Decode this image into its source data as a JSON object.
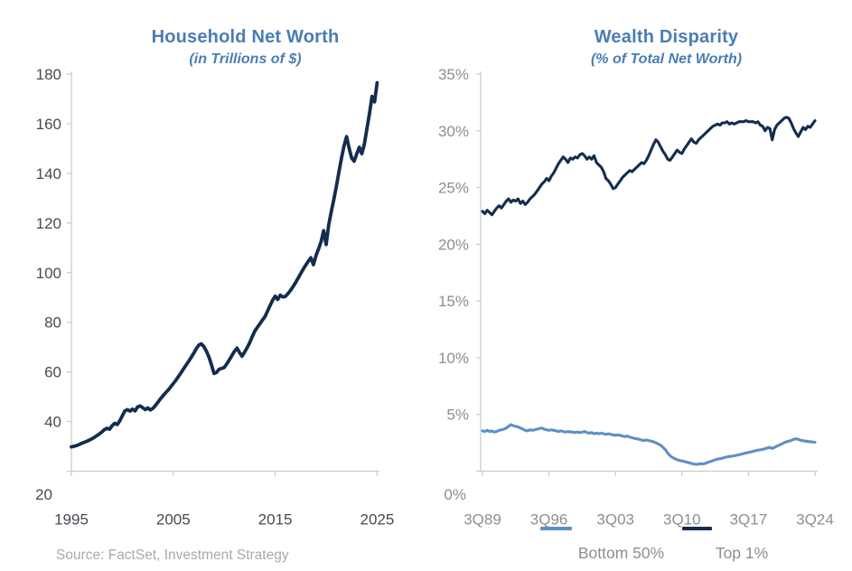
{
  "page": {
    "background": "#ffffff",
    "source_note": "Source: FactSet, Investment Strategy"
  },
  "colors": {
    "axis": "#c9c9c9",
    "left_tick_label": "#454b52",
    "right_tick_label": "#8e8e8e",
    "title_blue": "#4a7db5",
    "navy": "#142c4e",
    "light_blue": "#5d90c5",
    "legend_text": "#8e8e8e",
    "source_gray": "#a9a9a9"
  },
  "chart_data": [
    {
      "type": "line",
      "title": "Household Net Worth",
      "subtitle": "(in Trillions of $)",
      "xlabel": "",
      "ylabel": "",
      "grid": false,
      "legend_position": "none",
      "xlim": [
        1995,
        2025
      ],
      "ylim": [
        20,
        180
      ],
      "x_start": 1995,
      "x_step": 0.25,
      "xticks": [
        {
          "value": 1995,
          "label": "1995"
        },
        {
          "value": 2005,
          "label": "2005"
        },
        {
          "value": 2015,
          "label": "2015"
        },
        {
          "value": 2025,
          "label": "2025"
        }
      ],
      "yticks": [
        {
          "value": 180,
          "label": "180"
        },
        {
          "value": 160,
          "label": "160"
        },
        {
          "value": 140,
          "label": "140"
        },
        {
          "value": 120,
          "label": "120"
        },
        {
          "value": 100,
          "label": "100"
        },
        {
          "value": 80,
          "label": "80"
        },
        {
          "value": 60,
          "label": "60"
        },
        {
          "value": 40,
          "label": "40"
        },
        {
          "value": 20,
          "label": "20"
        }
      ],
      "series": [
        {
          "name": "",
          "color": "#142c4e",
          "width": 3.8,
          "values": [
            29.8,
            30.0,
            30.3,
            30.7,
            31.2,
            31.6,
            32.0,
            32.5,
            33.0,
            33.6,
            34.3,
            35.0,
            35.8,
            36.8,
            37.3,
            36.9,
            38.3,
            39.3,
            38.8,
            40.3,
            42.3,
            44.3,
            44.8,
            44.2,
            45.0,
            44.3,
            45.9,
            46.3,
            45.6,
            44.8,
            45.5,
            44.7,
            45.3,
            46.5,
            47.8,
            49.2,
            50.4,
            51.6,
            52.7,
            54.0,
            55.3,
            56.6,
            58.1,
            59.6,
            61.2,
            62.7,
            64.2,
            65.8,
            67.5,
            69.3,
            70.8,
            71.3,
            70.2,
            68.3,
            65.9,
            62.8,
            59.4,
            59.8,
            61.1,
            61.4,
            61.8,
            63.2,
            64.8,
            66.6,
            68.3,
            69.6,
            67.8,
            66.3,
            68.0,
            69.8,
            71.8,
            74.2,
            76.4,
            78.0,
            79.4,
            80.9,
            82.3,
            84.5,
            86.8,
            88.9,
            90.5,
            89.2,
            90.9,
            90.2,
            90.4,
            91.5,
            92.8,
            94.3,
            96.0,
            97.8,
            99.6,
            101.4,
            103.0,
            104.6,
            106.0,
            103.2,
            106.8,
            109.5,
            112.5,
            116.9,
            111.3,
            119.2,
            124.5,
            129.5,
            134.8,
            140.5,
            146.0,
            151.0,
            154.8,
            150.2,
            146.2,
            144.9,
            147.8,
            150.5,
            147.9,
            151.8,
            158.0,
            164.0,
            171.0,
            168.8,
            176.5
          ]
        }
      ]
    },
    {
      "type": "line",
      "title": "Wealth Disparity",
      "subtitle": "(% of Total Net Worth)",
      "xlabel": "",
      "ylabel": "",
      "grid": false,
      "legend_position": "bottom",
      "xlim": [
        1989.75,
        2024.75
      ],
      "ylim": [
        0,
        35
      ],
      "x_start": 1989.75,
      "x_step": 0.25,
      "xticks": [
        {
          "value": 1989.75,
          "label": "3Q89"
        },
        {
          "value": 1996.75,
          "label": "3Q96"
        },
        {
          "value": 2003.75,
          "label": "3Q03"
        },
        {
          "value": 2010.75,
          "label": "3Q10"
        },
        {
          "value": 2017.75,
          "label": "3Q17"
        },
        {
          "value": 2024.75,
          "label": "3Q24"
        }
      ],
      "yticks": [
        {
          "value": 35,
          "label": "35%"
        },
        {
          "value": 30,
          "label": "30%"
        },
        {
          "value": 25,
          "label": "25%"
        },
        {
          "value": 20,
          "label": "20%"
        },
        {
          "value": 15,
          "label": "15%"
        },
        {
          "value": 10,
          "label": "10%"
        },
        {
          "value": 5,
          "label": "5%"
        },
        {
          "value": 0,
          "label": "0%"
        }
      ],
      "series": [
        {
          "name": "Bottom 50%",
          "color": "#5d90c5",
          "width": 3.1,
          "values": [
            3.55,
            3.5,
            3.6,
            3.5,
            3.55,
            3.45,
            3.5,
            3.6,
            3.65,
            3.7,
            3.8,
            3.95,
            4.1,
            4.0,
            3.95,
            3.9,
            3.8,
            3.7,
            3.6,
            3.55,
            3.65,
            3.6,
            3.65,
            3.7,
            3.75,
            3.8,
            3.7,
            3.65,
            3.6,
            3.65,
            3.6,
            3.55,
            3.5,
            3.55,
            3.5,
            3.45,
            3.5,
            3.45,
            3.45,
            3.4,
            3.45,
            3.4,
            3.45,
            3.5,
            3.4,
            3.35,
            3.4,
            3.3,
            3.35,
            3.3,
            3.35,
            3.3,
            3.25,
            3.3,
            3.25,
            3.2,
            3.15,
            3.2,
            3.15,
            3.1,
            3.05,
            3.1,
            3.0,
            2.95,
            2.9,
            2.85,
            2.8,
            2.75,
            2.7,
            2.75,
            2.7,
            2.65,
            2.6,
            2.5,
            2.4,
            2.3,
            2.1,
            1.9,
            1.6,
            1.35,
            1.2,
            1.1,
            1.0,
            0.95,
            0.9,
            0.85,
            0.8,
            0.75,
            0.68,
            0.64,
            0.6,
            0.62,
            0.66,
            0.63,
            0.7,
            0.78,
            0.85,
            0.92,
            1.0,
            1.05,
            1.1,
            1.15,
            1.2,
            1.25,
            1.3,
            1.32,
            1.35,
            1.4,
            1.45,
            1.5,
            1.55,
            1.6,
            1.65,
            1.7,
            1.75,
            1.8,
            1.85,
            1.88,
            1.92,
            1.98,
            2.05,
            2.1,
            2.0,
            2.1,
            2.2,
            2.3,
            2.4,
            2.5,
            2.6,
            2.65,
            2.7,
            2.8,
            2.85,
            2.8,
            2.72,
            2.68,
            2.65,
            2.62,
            2.6,
            2.57,
            2.55
          ]
        },
        {
          "name": "Top 1%",
          "color": "#142c4e",
          "width": 3.1,
          "values": [
            22.9,
            22.7,
            23.0,
            22.8,
            22.6,
            22.9,
            23.2,
            23.4,
            23.2,
            23.5,
            23.8,
            24.0,
            23.7,
            23.9,
            23.8,
            24.0,
            23.6,
            23.8,
            23.5,
            23.7,
            24.0,
            24.2,
            24.4,
            24.7,
            25.0,
            25.3,
            25.5,
            25.8,
            25.6,
            26.0,
            26.3,
            26.7,
            27.1,
            27.4,
            27.7,
            27.5,
            27.2,
            27.6,
            27.5,
            27.7,
            27.6,
            27.9,
            28.0,
            27.8,
            27.5,
            27.7,
            27.5,
            27.8,
            27.2,
            27.0,
            26.8,
            26.4,
            25.8,
            25.6,
            25.3,
            24.9,
            25.0,
            25.3,
            25.6,
            25.9,
            26.1,
            26.3,
            26.5,
            26.4,
            26.6,
            26.8,
            27.0,
            27.2,
            27.1,
            27.4,
            27.8,
            28.3,
            28.8,
            29.2,
            29.0,
            28.6,
            28.2,
            27.9,
            27.5,
            27.4,
            27.7,
            28.0,
            28.3,
            28.1,
            28.0,
            28.4,
            28.7,
            29.0,
            29.3,
            29.0,
            28.9,
            29.2,
            29.4,
            29.6,
            29.8,
            30.0,
            30.2,
            30.4,
            30.5,
            30.6,
            30.5,
            30.7,
            30.7,
            30.8,
            30.6,
            30.7,
            30.6,
            30.7,
            30.8,
            30.8,
            30.8,
            30.9,
            30.8,
            30.8,
            30.8,
            30.7,
            30.8,
            30.5,
            30.4,
            30.0,
            30.3,
            30.2,
            29.2,
            30.1,
            30.5,
            30.7,
            30.9,
            31.1,
            31.2,
            31.1,
            30.7,
            30.2,
            29.8,
            29.5,
            29.9,
            30.3,
            30.1,
            30.4,
            30.3,
            30.6,
            30.9
          ]
        }
      ]
    }
  ]
}
